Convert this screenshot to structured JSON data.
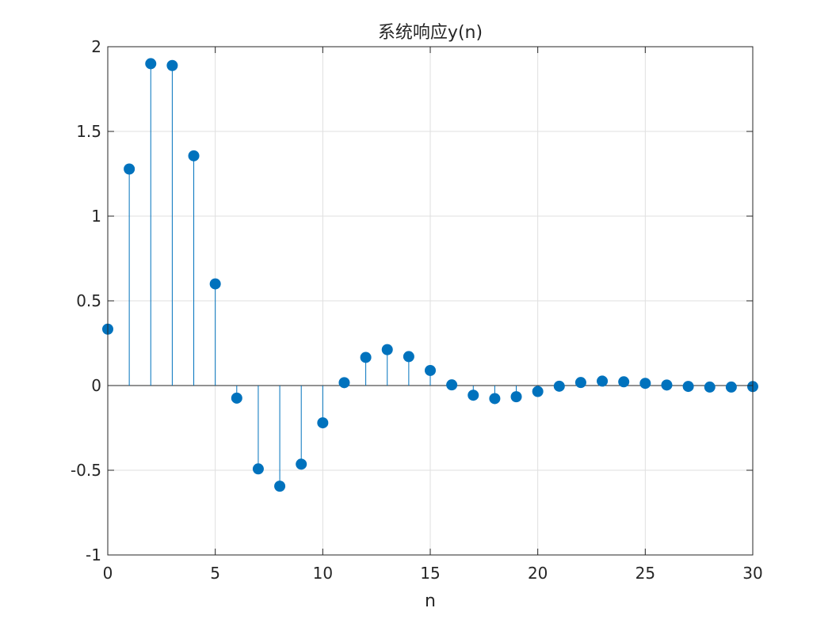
{
  "chart_data": {
    "type": "stem",
    "title": "系统响应y(n)",
    "xlabel": "n",
    "ylabel": "",
    "xlim": [
      0,
      30
    ],
    "ylim": [
      -1,
      2
    ],
    "xticks": [
      0,
      5,
      10,
      15,
      20,
      25,
      30
    ],
    "yticks": [
      -1,
      -0.5,
      0,
      0.5,
      1,
      1.5,
      2
    ],
    "xtick_labels": [
      "0",
      "5",
      "10",
      "15",
      "20",
      "25",
      "30"
    ],
    "ytick_labels": [
      "-1",
      "-0.5",
      "0",
      "0.5",
      "1",
      "1.5",
      "2"
    ],
    "grid": true,
    "series": [
      {
        "color": "#0072BD",
        "x": [
          0,
          1,
          2,
          3,
          4,
          5,
          6,
          7,
          8,
          9,
          10,
          11,
          12,
          13,
          14,
          15,
          16,
          17,
          18,
          19,
          20,
          21,
          22,
          23,
          24,
          25,
          26,
          27,
          28,
          29,
          30
        ],
        "y": [
          0.333,
          1.278,
          1.9,
          1.889,
          1.356,
          0.6,
          -0.074,
          -0.492,
          -0.594,
          -0.464,
          -0.22,
          0.017,
          0.166,
          0.212,
          0.171,
          0.089,
          0.004,
          -0.057,
          -0.077,
          -0.066,
          -0.035,
          -0.004,
          0.018,
          0.026,
          0.022,
          0.013,
          0.003,
          -0.005,
          -0.009,
          -0.009,
          -0.006
        ]
      }
    ]
  }
}
